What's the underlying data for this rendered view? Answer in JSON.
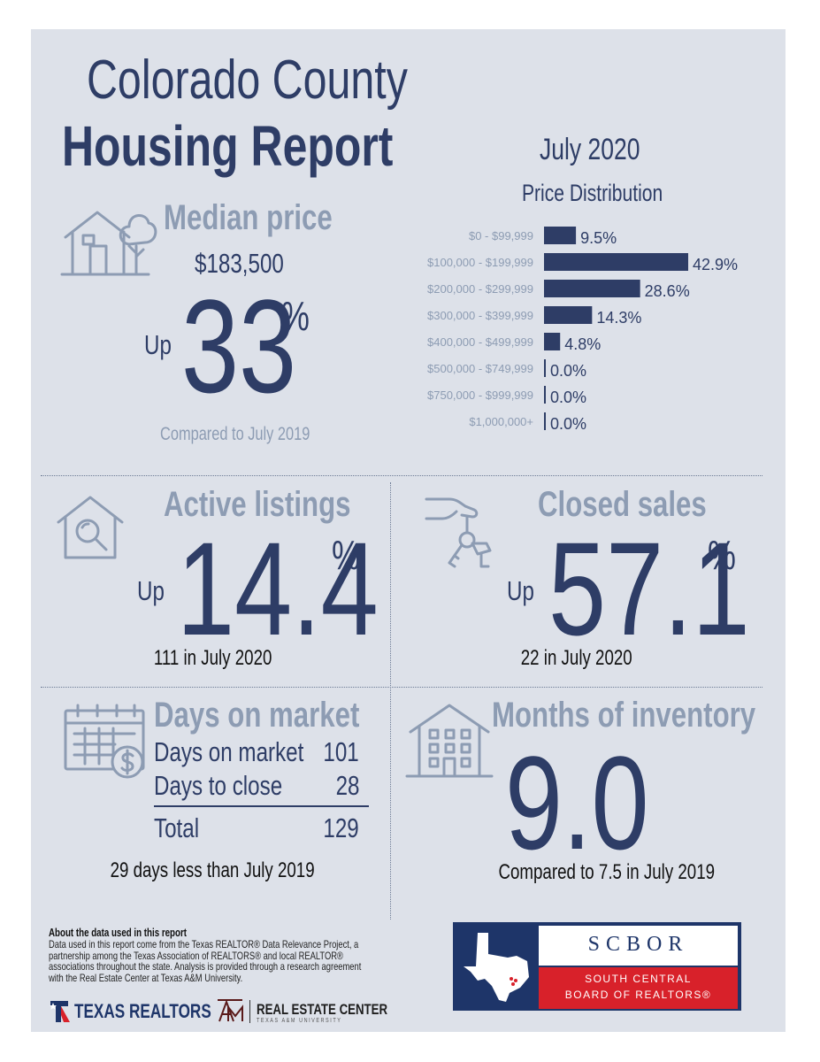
{
  "report": {
    "title_line1": "Colorado County",
    "title_line2": "Housing Report",
    "month": "July 2020"
  },
  "median_price": {
    "label": "Median price",
    "value": "$183,500",
    "direction": "Up",
    "change": "33",
    "percent_sign": "%",
    "comparison": "Compared to July 2019"
  },
  "active_listings": {
    "label": "Active listings",
    "direction": "Up",
    "change": "14.4",
    "percent_sign": "%",
    "detail": "111 in July 2020"
  },
  "closed_sales": {
    "label": "Closed sales",
    "direction": "Up",
    "change": "57.1",
    "percent_sign": "%",
    "detail": "22 in July 2020"
  },
  "days_on_market": {
    "label": "Days on market",
    "rows": [
      {
        "label": "Days on market",
        "value": "101"
      },
      {
        "label": "Days to close",
        "value": "28"
      }
    ],
    "total_label": "Total",
    "total_value": "129",
    "comparison": "29 days less than July 2019"
  },
  "months_of_inventory": {
    "label": "Months of inventory",
    "value": "9.0",
    "comparison": "Compared to 7.5 in July 2019"
  },
  "chart_data": {
    "type": "bar",
    "orientation": "horizontal",
    "title": "Price Distribution",
    "categories": [
      "$0 - $99,999",
      "$100,000 - $199,999",
      "$200,000 - $299,999",
      "$300,000 - $399,999",
      "$400,000 - $499,999",
      "$500,000 - $749,999",
      "$750,000 - $999,999",
      "$1,000,000+"
    ],
    "values": [
      9.5,
      42.9,
      28.6,
      14.3,
      4.8,
      0.0,
      0.0,
      0.0
    ],
    "value_labels": [
      "9.5%",
      "42.9%",
      "28.6%",
      "14.3%",
      "4.8%",
      "0.0%",
      "0.0%",
      "0.0%"
    ],
    "bar_color": "#2e3d66",
    "label_color": "#8d9cb3"
  },
  "footer": {
    "about_heading": "About the data used in this report",
    "about_lines": [
      "Data used in this report come from the Texas REALTOR® Data Relevance Project, a",
      "partnership among the Texas Association of REALTORS® and local REALTOR®",
      "associations throughout the state. Analysis is provided through a research agreement",
      "with the Real Estate Center at Texas A&M University."
    ],
    "texas_realtors": "TEXAS REALTORS",
    "real_estate_center": "REAL ESTATE CENTER",
    "texas_am": "TEXAS A&M UNIVERSITY",
    "scbor": "SCBOR",
    "scbor_line1": "SOUTH CENTRAL",
    "scbor_line2": "BOARD OF REALTORS®"
  },
  "colors": {
    "navy": "#2e3d66",
    "slate": "#8d9cb3",
    "panel": "#dde1e9",
    "red": "#d8212a"
  }
}
